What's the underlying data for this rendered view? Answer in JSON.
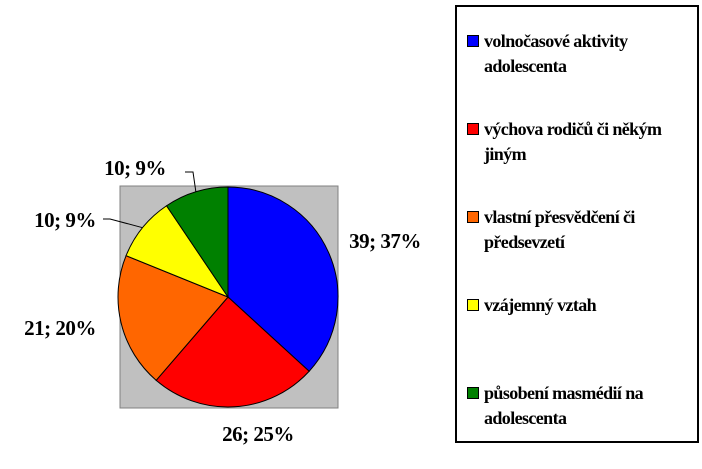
{
  "chart_data": {
    "type": "pie",
    "categories": [
      "volnočasové aktivity adolescenta",
      "výchova rodičů či někým jiným",
      "vlastní přesvědčení či předsevzetí",
      "vzájemný vztah",
      "působení masmédií na adolescenta"
    ],
    "values": [
      39,
      26,
      21,
      10,
      10
    ],
    "value_labels": [
      "39; 37%",
      "26; 25%",
      "21; 20%",
      "10; 9%",
      "10; 9%"
    ],
    "colors": [
      "#0000ff",
      "#ff0000",
      "#ff6600",
      "#ffff00",
      "#008000"
    ],
    "legend": "right"
  }
}
